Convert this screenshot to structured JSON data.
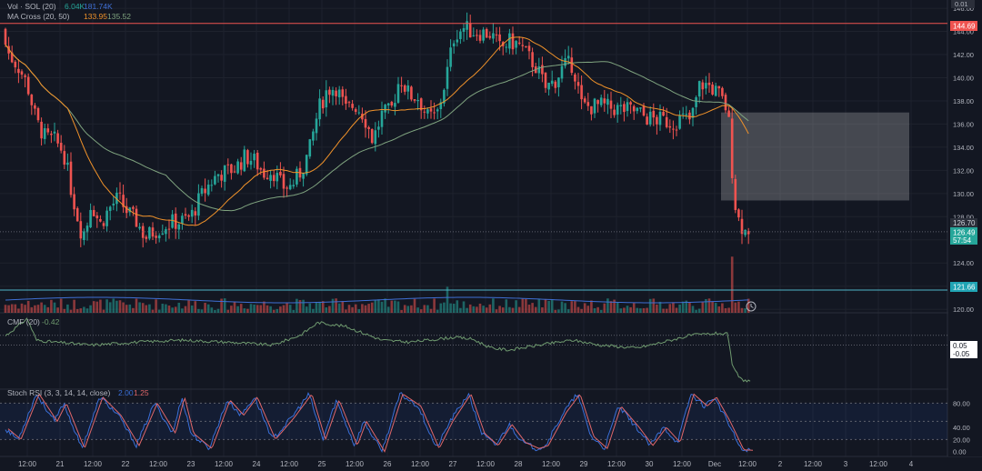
{
  "colors": {
    "background": "#131722",
    "grid": "#1e222d",
    "text": "#b2b5be",
    "up": "#26a69a",
    "down": "#ef5350",
    "ma20": "#f0922a",
    "ma50": "#7fa37f",
    "volume_ma": "#3f6fd4",
    "cmf": "#6f9a6f",
    "stoch_k": "#3a6fd8",
    "stoch_d": "#e0676a",
    "hline_red": "#ef5350",
    "hline_cyan": "#4fb6c8",
    "box": "#c8c8c8",
    "price_tag": "#2b2f3a",
    "green_tag": "#26a69a",
    "cyan_tag": "#20a4b4"
  },
  "legend": {
    "top_partial": "",
    "vol_name": "Vol · SOL (20)",
    "vol_v1": "6.04K",
    "vol_v2": "181.74K",
    "ma_name": "MA Cross (20, 50)",
    "ma_v1": "133.95",
    "ma_v2": "135.52",
    "cmf_name": "CMF (20)",
    "cmf_v": "-0.42",
    "stoch_name": "Stoch RSI (3, 3, 14, 14, close)",
    "stoch_v1": "2.00",
    "stoch_v2": "1.25"
  },
  "price_axis_top": "0.01",
  "tags": {
    "red_line": "144.69",
    "last_close": "126.70",
    "current": "126.49",
    "countdown": "57:54",
    "cyan_line": "121.66",
    "cmf_top": "0.05",
    "cmf_bottom": "-0.05"
  },
  "chart_data": {
    "type": "candlestick",
    "x_ticks": [
      "12:00",
      "21",
      "12:00",
      "22",
      "12:00",
      "23",
      "12:00",
      "24",
      "12:00",
      "25",
      "12:00",
      "26",
      "12:00",
      "27",
      "12:00",
      "28",
      "12:00",
      "29",
      "12:00",
      "30",
      "12:00",
      "Dec",
      "12:00",
      "2",
      "12:00",
      "3",
      "12:00",
      "4"
    ],
    "price_ticks": [
      "146.00",
      "144.00",
      "142.00",
      "140.00",
      "138.00",
      "136.00",
      "134.00",
      "132.00",
      "130.00",
      "128.00",
      "126.00",
      "124.00",
      "122.00",
      "120.00"
    ],
    "ylim": [
      119.7,
      146.4
    ],
    "horizontal_lines": [
      144.69,
      121.66
    ],
    "box": {
      "price_top": 137.0,
      "price_bottom": 129.4
    },
    "close_anchors": [
      [
        0,
        144.2
      ],
      [
        10,
        142.0
      ],
      [
        20,
        141.0
      ],
      [
        30,
        139.4
      ],
      [
        40,
        136.2
      ],
      [
        50,
        134.8
      ],
      [
        60,
        134.6
      ],
      [
        70,
        133.6
      ],
      [
        80,
        129.7
      ],
      [
        90,
        126.5
      ],
      [
        95,
        127.0
      ],
      [
        100,
        129.3
      ],
      [
        110,
        127.3
      ],
      [
        120,
        128.7
      ],
      [
        130,
        129.6
      ],
      [
        140,
        128.4
      ],
      [
        150,
        127.6
      ],
      [
        160,
        126.2
      ],
      [
        170,
        126.8
      ],
      [
        180,
        127.2
      ],
      [
        190,
        127.5
      ],
      [
        200,
        127.6
      ],
      [
        210,
        128.0
      ],
      [
        220,
        129.6
      ],
      [
        230,
        130.8
      ],
      [
        240,
        131.7
      ],
      [
        250,
        131.9
      ],
      [
        260,
        132.3
      ],
      [
        270,
        133.2
      ],
      [
        280,
        132.8
      ],
      [
        290,
        131.8
      ],
      [
        300,
        132.0
      ],
      [
        310,
        130.6
      ],
      [
        320,
        130.6
      ],
      [
        330,
        131.8
      ],
      [
        340,
        133.6
      ],
      [
        350,
        137.2
      ],
      [
        360,
        139.0
      ],
      [
        370,
        139.2
      ],
      [
        380,
        137.2
      ],
      [
        390,
        137.7
      ],
      [
        400,
        136.8
      ],
      [
        410,
        134.6
      ],
      [
        420,
        136.8
      ],
      [
        430,
        137.1
      ],
      [
        440,
        140.1
      ],
      [
        450,
        138.5
      ],
      [
        460,
        138.3
      ],
      [
        470,
        136.6
      ],
      [
        480,
        136.6
      ],
      [
        490,
        139.8
      ],
      [
        500,
        143.8
      ],
      [
        510,
        144.3
      ],
      [
        520,
        144.0
      ],
      [
        530,
        143.9
      ],
      [
        540,
        143.8
      ],
      [
        550,
        142.5
      ],
      [
        560,
        143.1
      ],
      [
        570,
        142.9
      ],
      [
        580,
        141.9
      ],
      [
        590,
        140.9
      ],
      [
        600,
        139.1
      ],
      [
        610,
        139.7
      ],
      [
        620,
        141.0
      ],
      [
        630,
        141.2
      ],
      [
        640,
        137.5
      ],
      [
        650,
        137.5
      ],
      [
        660,
        137.6
      ],
      [
        670,
        137.4
      ],
      [
        680,
        137.3
      ],
      [
        690,
        137.2
      ],
      [
        700,
        137.1
      ],
      [
        710,
        136.6
      ],
      [
        720,
        136.4
      ],
      [
        730,
        136.3
      ],
      [
        740,
        136.1
      ],
      [
        750,
        136.5
      ],
      [
        760,
        136.3
      ],
      [
        770,
        139.5
      ],
      [
        780,
        139.3
      ],
      [
        790,
        138.6
      ],
      [
        800,
        137.2
      ],
      [
        803,
        135.0
      ],
      [
        806,
        131.0
      ],
      [
        810,
        128.2
      ],
      [
        815,
        127.3
      ],
      [
        820,
        126.7
      ],
      [
        826,
        126.49
      ]
    ],
    "volume_spikes": {
      "91": 10,
      "493": 44,
      "626": 6,
      "806": 95,
      "816": 8
    },
    "volume_ma_ylim": [
      0,
      60
    ],
    "cmf_anchors": [
      [
        0,
        0.0
      ],
      [
        30,
        0.22
      ],
      [
        40,
        0.0
      ],
      [
        60,
        -0.02
      ],
      [
        100,
        -0.05
      ],
      [
        150,
        -0.02
      ],
      [
        200,
        0.0
      ],
      [
        250,
        -0.02
      ],
      [
        300,
        -0.05
      ],
      [
        330,
        0.05
      ],
      [
        350,
        0.18
      ],
      [
        380,
        0.14
      ],
      [
        420,
        0.0
      ],
      [
        450,
        -0.02
      ],
      [
        500,
        0.03
      ],
      [
        520,
        0.01
      ],
      [
        540,
        -0.08
      ],
      [
        560,
        -0.1
      ],
      [
        600,
        -0.04
      ],
      [
        630,
        0.0
      ],
      [
        660,
        -0.05
      ],
      [
        700,
        -0.08
      ],
      [
        720,
        -0.04
      ],
      [
        760,
        0.05
      ],
      [
        790,
        0.07
      ],
      [
        800,
        0.06
      ],
      [
        806,
        -0.28
      ],
      [
        815,
        -0.4
      ],
      [
        826,
        -0.42
      ]
    ],
    "cmf_ylim": [
      -0.48,
      0.26
    ],
    "stoch_ticks": [
      "80.00",
      "40.00",
      "20.00",
      "0.00"
    ],
    "stoch_ylim": [
      -5,
      100
    ],
    "stoch_anchors": [
      [
        0,
        45
      ],
      [
        20,
        20
      ],
      [
        40,
        95
      ],
      [
        60,
        50
      ],
      [
        70,
        80
      ],
      [
        90,
        5
      ],
      [
        110,
        90
      ],
      [
        130,
        60
      ],
      [
        150,
        10
      ],
      [
        170,
        80
      ],
      [
        190,
        30
      ],
      [
        200,
        90
      ],
      [
        210,
        30
      ],
      [
        230,
        5
      ],
      [
        250,
        85
      ],
      [
        265,
        60
      ],
      [
        280,
        90
      ],
      [
        300,
        20
      ],
      [
        320,
        55
      ],
      [
        340,
        95
      ],
      [
        355,
        20
      ],
      [
        370,
        85
      ],
      [
        390,
        10
      ],
      [
        400,
        50
      ],
      [
        420,
        0
      ],
      [
        440,
        95
      ],
      [
        460,
        75
      ],
      [
        480,
        5
      ],
      [
        495,
        50
      ],
      [
        515,
        95
      ],
      [
        530,
        30
      ],
      [
        545,
        10
      ],
      [
        560,
        45
      ],
      [
        575,
        15
      ],
      [
        590,
        5
      ],
      [
        600,
        10
      ],
      [
        620,
        65
      ],
      [
        635,
        95
      ],
      [
        650,
        25
      ],
      [
        665,
        5
      ],
      [
        680,
        75
      ],
      [
        700,
        40
      ],
      [
        715,
        10
      ],
      [
        730,
        40
      ],
      [
        745,
        15
      ],
      [
        760,
        95
      ],
      [
        775,
        75
      ],
      [
        785,
        90
      ],
      [
        800,
        50
      ],
      [
        815,
        3
      ],
      [
        826,
        2
      ]
    ]
  }
}
